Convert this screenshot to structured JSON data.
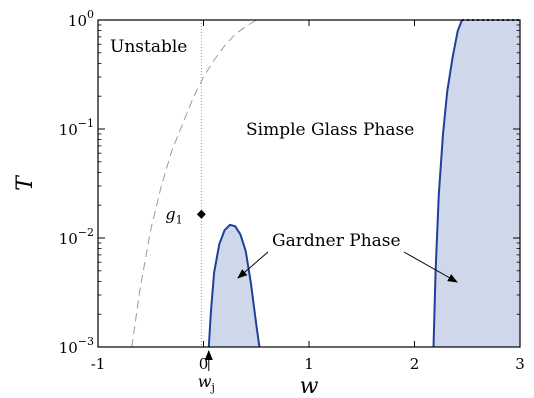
{
  "chart_data": {
    "type": "line",
    "xlabel": "w",
    "ylabel": "T",
    "xlim": [
      -1,
      3
    ],
    "ylim": [
      0.001,
      1
    ],
    "yscale": "log",
    "grid": false,
    "x_ticks": [
      -1,
      0,
      1,
      2,
      3
    ],
    "x_tick_labels": [
      "-1",
      "0",
      "1",
      "2",
      "3"
    ],
    "y_ticks": [
      0.001,
      0.01,
      0.1,
      1
    ],
    "y_tick_labels": [
      {
        "base": "10",
        "exp": "−3"
      },
      {
        "base": "10",
        "exp": "−2"
      },
      {
        "base": "10",
        "exp": "−1"
      },
      {
        "base": "10",
        "exp": "0"
      }
    ],
    "region_labels": {
      "unstable": "Unstable",
      "simple_glass": "Simple Glass Phase",
      "gardner": "Gardner Phase"
    },
    "point": {
      "label_main": "g",
      "label_sub": "1",
      "x": -0.02,
      "y": 0.0165
    },
    "marker": {
      "label_main": "w",
      "label_sub": "j",
      "x": 0.05
    },
    "vertical_line_x": -0.02,
    "colors": {
      "fill": "#cfd8eb",
      "boundary": "#1f3f99",
      "dashed": "#9a9a9a",
      "dotted": "#999999"
    },
    "dashed_curve": [
      [
        -0.68,
        0.001
      ],
      [
        -0.6,
        0.0035
      ],
      [
        -0.5,
        0.012
      ],
      [
        -0.4,
        0.03
      ],
      [
        -0.3,
        0.063
      ],
      [
        -0.2,
        0.11
      ],
      [
        -0.1,
        0.19
      ],
      [
        0.0,
        0.3
      ],
      [
        0.1,
        0.43
      ],
      [
        0.2,
        0.58
      ],
      [
        0.3,
        0.74
      ],
      [
        0.4,
        0.87
      ],
      [
        0.5,
        1.0
      ]
    ],
    "gardner_small": [
      [
        0.05,
        0.001
      ],
      [
        0.07,
        0.0021
      ],
      [
        0.1,
        0.0048
      ],
      [
        0.15,
        0.0088
      ],
      [
        0.2,
        0.0118
      ],
      [
        0.25,
        0.0132
      ],
      [
        0.3,
        0.0128
      ],
      [
        0.35,
        0.0108
      ],
      [
        0.4,
        0.0076
      ],
      [
        0.45,
        0.0038
      ],
      [
        0.5,
        0.0016
      ],
      [
        0.53,
        0.001
      ]
    ],
    "gardner_large_boundary": [
      [
        2.18,
        0.001
      ],
      [
        2.2,
        0.005
      ],
      [
        2.23,
        0.025
      ],
      [
        2.27,
        0.09
      ],
      [
        2.31,
        0.22
      ],
      [
        2.36,
        0.45
      ],
      [
        2.41,
        0.8
      ],
      [
        2.45,
        1.0
      ]
    ]
  }
}
